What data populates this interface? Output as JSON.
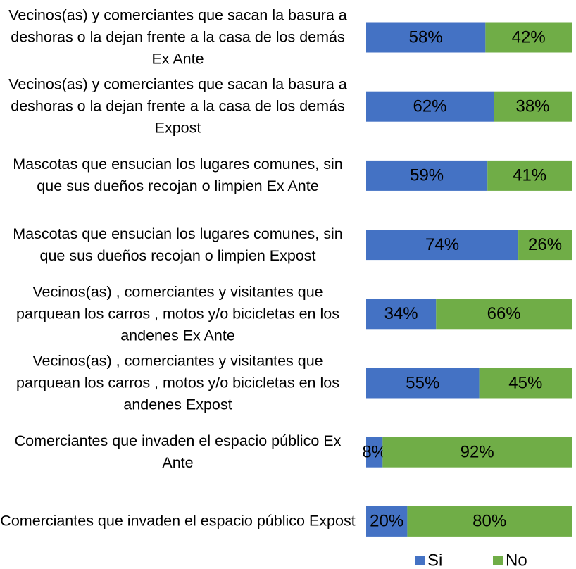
{
  "chart_data": {
    "type": "stacked_bar_horizontal",
    "categories": [
      "Vecinos(as) y comerciantes que sacan la basura  a deshoras o la dejan frente a la casa de los demás Ex Ante",
      "Vecinos(as) y comerciantes que sacan la basura  a deshoras o la dejan frente a la casa de los demás Expost",
      "Mascotas que ensucian los lugares comunes, sin que sus dueños recojan o limpien Ex Ante",
      "Mascotas que ensucian los lugares comunes, sin que sus dueños recojan o limpien Expost",
      "Vecinos(as) , comerciantes y visitantes que parquean los carros , motos y/o bicicletas en los andenes  Ex Ante",
      "Vecinos(as) , comerciantes y visitantes que parquean los carros , motos y/o bicicletas en los andenes Expost",
      "Comerciantes que invaden el espacio público Ex Ante",
      "Comerciantes que invaden el espacio público Expost"
    ],
    "series": [
      {
        "name": "Si",
        "color": "#4472c4",
        "values": [
          58,
          62,
          59,
          74,
          34,
          55,
          8,
          20
        ],
        "value_labels": [
          "58%",
          "62%",
          "59%",
          "74%",
          "34%",
          "55%",
          "8%",
          "20%"
        ]
      },
      {
        "name": "No",
        "color": "#70ad47",
        "values": [
          42,
          38,
          41,
          26,
          66,
          45,
          92,
          80
        ],
        "value_labels": [
          "42%",
          "38%",
          "41%",
          "26%",
          "66%",
          "45%",
          "92%",
          "80%"
        ]
      }
    ],
    "xlim": [
      0,
      100
    ],
    "legend": "bottom"
  }
}
